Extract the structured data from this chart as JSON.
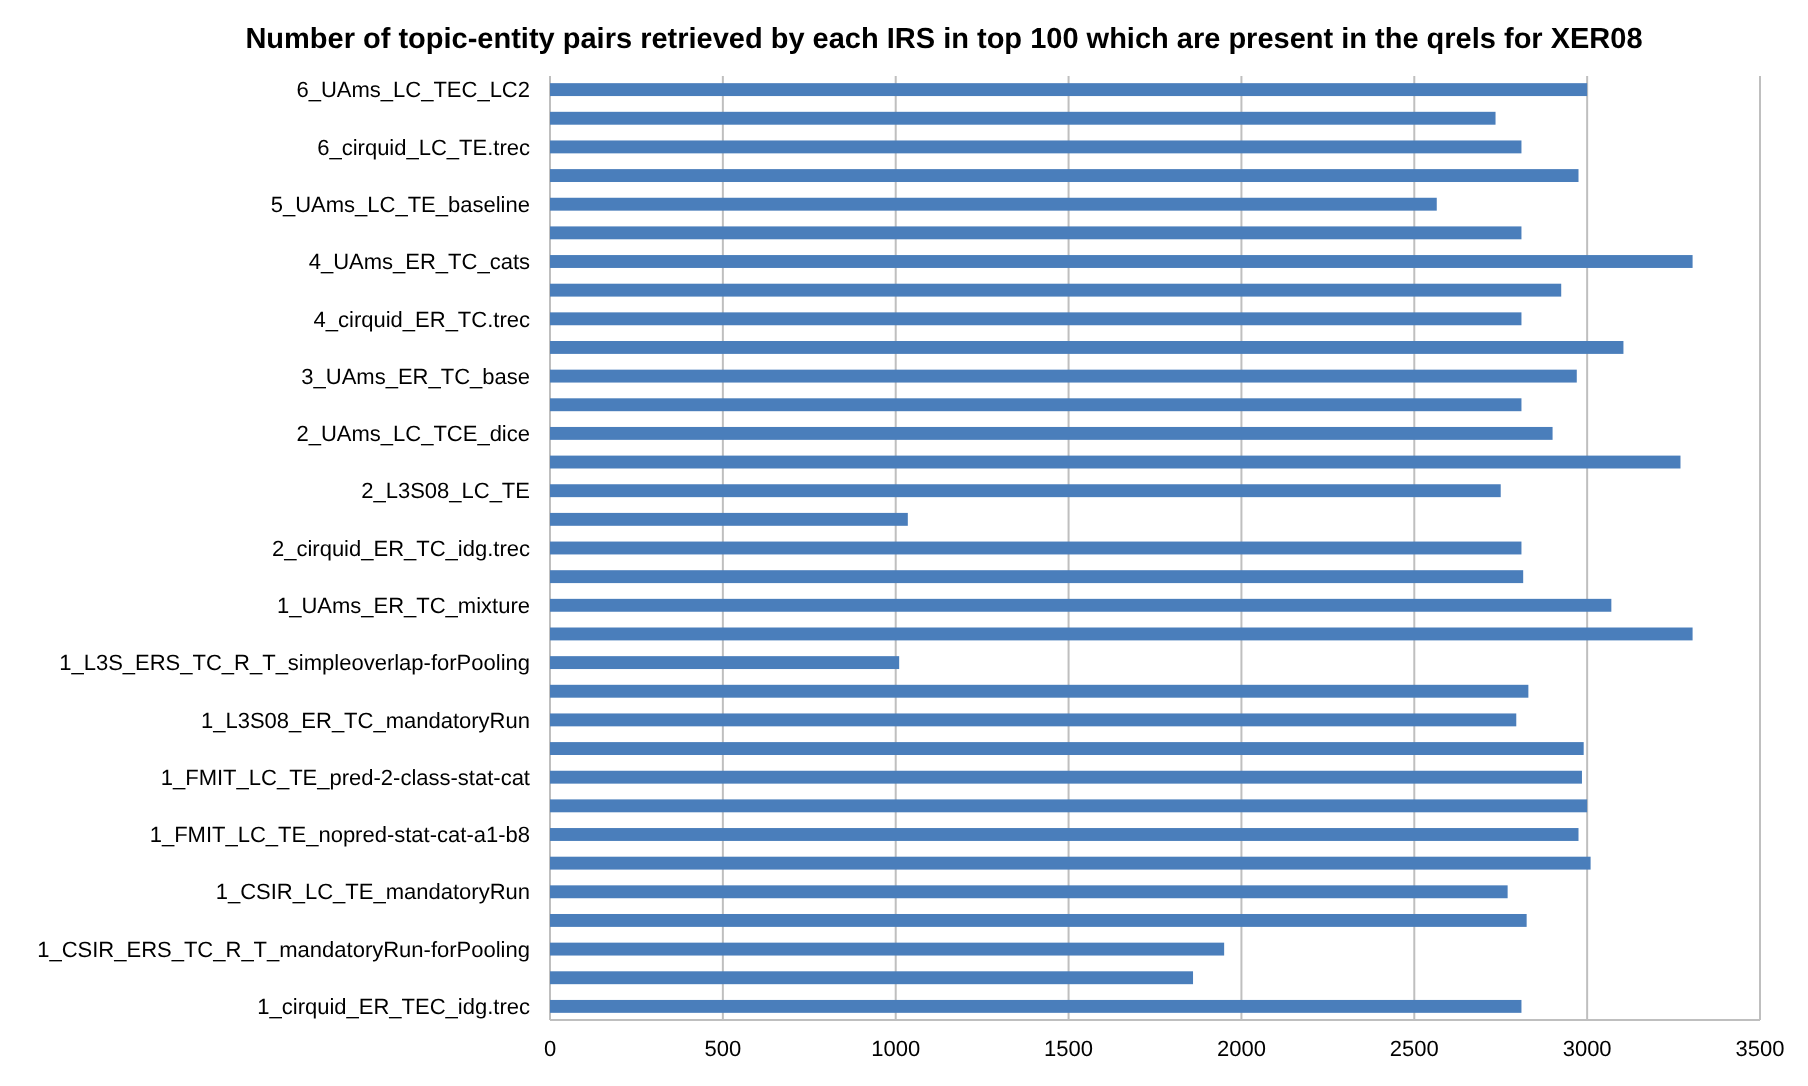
{
  "chart_data": {
    "type": "bar",
    "orientation": "horizontal",
    "title": "Number of topic-entity pairs retrieved by each IRS in top 100 which are present in the qrels for XER08",
    "categories": [
      "6_UAms_LC_TEC_LC2",
      null,
      "6_cirquid_LC_TE.trec",
      null,
      "5_UAms_LC_TE_baseline",
      null,
      "4_UAms_ER_TC_cats",
      null,
      "4_cirquid_ER_TC.trec",
      null,
      "3_UAms_ER_TC_base",
      null,
      "2_UAms_LC_TCE_dice",
      null,
      "2_L3S08_LC_TE",
      null,
      "2_cirquid_ER_TC_idg.trec",
      null,
      "1_UAms_ER_TC_mixture",
      null,
      "1_L3S_ERS_TC_R_T_simpleoverlap-forPooling",
      null,
      "1_L3S08_ER_TC_mandatoryRun",
      null,
      "1_FMIT_LC_TE_pred-2-class-stat-cat",
      null,
      "1_FMIT_LC_TE_nopred-stat-cat-a1-b8",
      null,
      "1_CSIR_LC_TE_mandatoryRun",
      null,
      "1_CSIR_ERS_TC_R_T_mandatoryRun-forPooling",
      null,
      "1_cirquid_ER_TEC_idg.trec"
    ],
    "values": [
      3000,
      2735,
      2810,
      2975,
      2565,
      2810,
      3305,
      2925,
      2810,
      3105,
      2970,
      2810,
      2900,
      3270,
      2750,
      1035,
      2810,
      2815,
      3070,
      3305,
      1010,
      2830,
      2795,
      2990,
      2985,
      3000,
      2975,
      3010,
      2770,
      2825,
      1950,
      1860,
      2810
    ],
    "color": "#4a7ebb",
    "xlim": [
      0,
      3500
    ],
    "xticks": [
      0,
      500,
      1000,
      1500,
      2000,
      2500,
      3000,
      3500
    ],
    "grid": "x"
  }
}
